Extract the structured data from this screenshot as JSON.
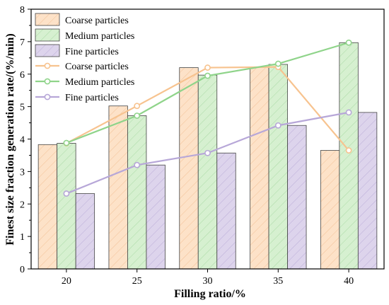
{
  "chart_data": {
    "type": "bar",
    "title": "",
    "xlabel": "Filling ratio/%",
    "ylabel": "Finest size fraction generation rate/(%/min)",
    "categories": [
      "20",
      "25",
      "30",
      "35",
      "40"
    ],
    "ylim": [
      0,
      8
    ],
    "yticks": [
      0,
      1,
      2,
      3,
      4,
      5,
      6,
      7,
      8
    ],
    "grid": false,
    "legend_position": "top-left",
    "series": [
      {
        "name": "Coarse particles",
        "kind": "bar",
        "values": [
          3.83,
          5.02,
          6.2,
          6.22,
          3.65
        ],
        "fill": "#fde2c8",
        "stroke": "#f0b98a"
      },
      {
        "name": "Medium particles",
        "kind": "bar",
        "values": [
          3.87,
          4.72,
          5.97,
          6.3,
          6.97
        ],
        "fill": "#d6f0d0",
        "stroke": "#9fd49a"
      },
      {
        "name": "Fine particles",
        "kind": "bar",
        "values": [
          2.32,
          3.2,
          3.57,
          4.42,
          4.82
        ],
        "fill": "#ddd4ec",
        "stroke": "#b3a3d3"
      }
    ],
    "line_series": [
      {
        "name": "Coarse particles",
        "kind": "line",
        "values": [
          3.87,
          5.02,
          6.2,
          6.22,
          3.65
        ],
        "color": "#f7c38f"
      },
      {
        "name": "Medium particles",
        "kind": "line",
        "values": [
          3.88,
          4.72,
          5.95,
          6.32,
          6.97
        ],
        "color": "#8fd48a"
      },
      {
        "name": "Fine particles",
        "kind": "line",
        "values": [
          2.32,
          3.2,
          3.57,
          4.42,
          4.82
        ],
        "color": "#b7a7d8"
      }
    ]
  }
}
